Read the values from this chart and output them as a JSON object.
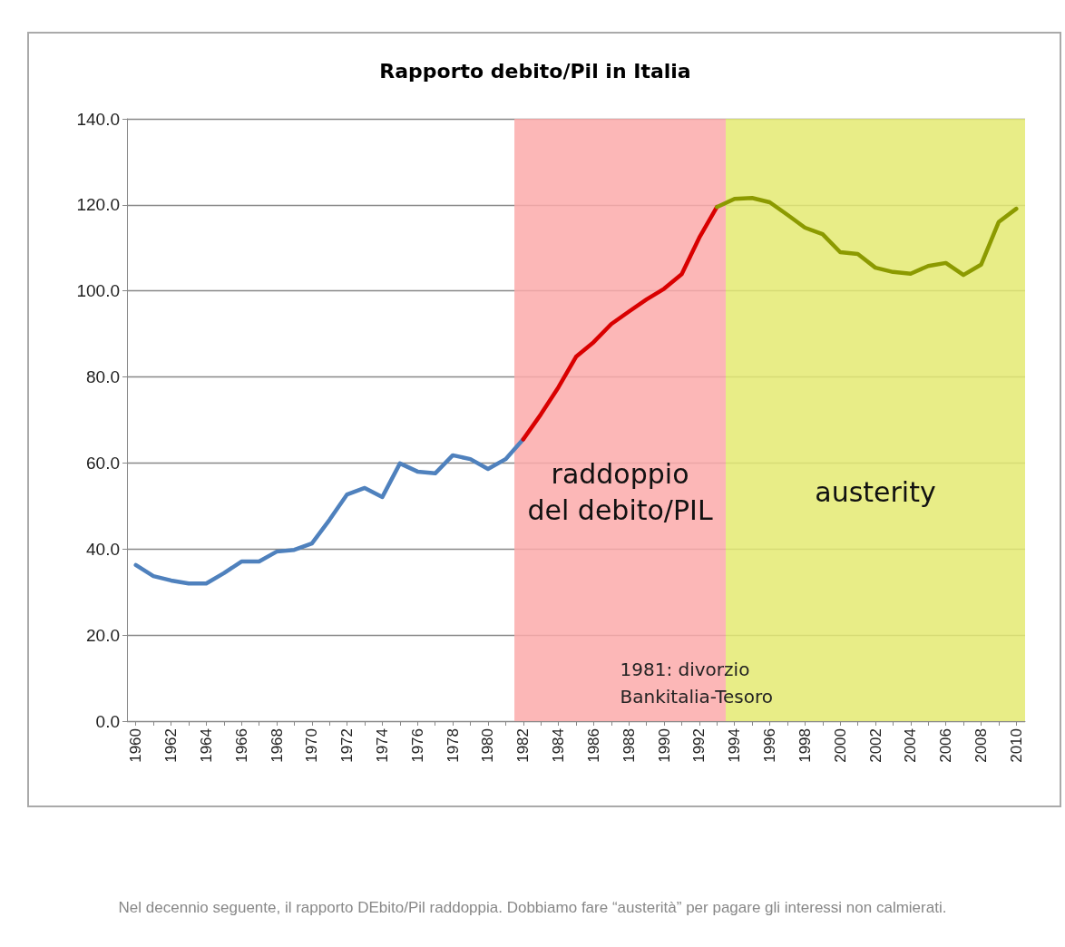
{
  "chart_data": {
    "type": "line",
    "title": "Rapporto debito/Pil in Italia",
    "x": [
      1960,
      1961,
      1962,
      1963,
      1964,
      1965,
      1966,
      1967,
      1968,
      1969,
      1970,
      1971,
      1972,
      1973,
      1974,
      1975,
      1976,
      1977,
      1978,
      1979,
      1980,
      1981,
      1982,
      1983,
      1984,
      1985,
      1986,
      1987,
      1988,
      1989,
      1990,
      1991,
      1992,
      1993,
      1994,
      1995,
      1996,
      1997,
      1998,
      1999,
      2000,
      2001,
      2002,
      2003,
      2004,
      2005,
      2006,
      2007,
      2008,
      2009,
      2010
    ],
    "series": [
      {
        "color": "#4f81bd",
        "values": [
          36.3,
          33.7,
          32.7,
          32,
          32,
          34.4,
          37.1,
          37.1,
          39.4,
          39.8,
          41.3,
          46.8,
          52.7,
          54.2,
          52.1,
          59.9,
          58,
          57.6,
          61.8,
          60.9,
          58.6,
          60.9,
          65.5,
          null,
          null,
          null,
          null,
          null,
          null,
          null,
          null,
          null,
          null,
          null,
          null,
          null,
          null,
          null,
          null,
          null,
          null,
          null,
          null,
          null,
          null,
          null,
          null,
          null,
          null,
          null,
          null
        ]
      },
      {
        "color": "#d90000",
        "values": [
          null,
          null,
          null,
          null,
          null,
          null,
          null,
          null,
          null,
          null,
          null,
          null,
          null,
          null,
          null,
          null,
          null,
          null,
          null,
          null,
          null,
          null,
          65.5,
          71.3,
          77.6,
          84.7,
          88.1,
          92.3,
          95.2,
          98,
          100.5,
          103.9,
          112.4,
          119.5,
          null,
          null,
          null,
          null,
          null,
          null,
          null,
          null,
          null,
          null,
          null,
          null,
          null,
          null,
          null,
          null,
          null
        ]
      },
      {
        "color": "#8c9a00",
        "values": [
          null,
          null,
          null,
          null,
          null,
          null,
          null,
          null,
          null,
          null,
          null,
          null,
          null,
          null,
          null,
          null,
          null,
          null,
          null,
          null,
          null,
          null,
          null,
          null,
          null,
          null,
          null,
          null,
          null,
          null,
          null,
          null,
          null,
          119.5,
          121.4,
          121.6,
          120.6,
          117.7,
          114.7,
          113.2,
          109,
          108.6,
          105.4,
          104.4,
          104,
          105.8,
          106.5,
          103.7,
          106.1,
          116,
          119.1
        ]
      }
    ],
    "xlim": [
      1959.5,
      2010.5
    ],
    "xticks": [
      1960,
      {
        "value": 1961,
        "label": null
      },
      1962,
      {
        "value": 1963,
        "label": null
      },
      1964,
      {
        "value": 1965,
        "label": null
      },
      1966,
      {
        "value": 1967,
        "label": null
      },
      1968,
      {
        "value": 1969,
        "label": null
      },
      1970,
      {
        "value": 1971,
        "label": null
      },
      1972,
      {
        "value": 1973,
        "label": null
      },
      1974,
      {
        "value": 1975,
        "label": null
      },
      1976,
      {
        "value": 1977,
        "label": null
      },
      1978,
      {
        "value": 1979,
        "label": null
      },
      1980,
      {
        "value": 1981,
        "label": null
      },
      1982,
      {
        "value": 1983,
        "label": null
      },
      1984,
      {
        "value": 1985,
        "label": null
      },
      1986,
      {
        "value": 1987,
        "label": null
      },
      1988,
      {
        "value": 1989,
        "label": null
      },
      1990,
      {
        "value": 1991,
        "label": null
      },
      1992,
      {
        "value": 1993,
        "label": null
      },
      1994,
      {
        "value": 1995,
        "label": null
      },
      1996,
      {
        "value": 1997,
        "label": null
      },
      1998,
      {
        "value": 1999,
        "label": null
      },
      2000,
      {
        "value": 2001,
        "label": null
      },
      2002,
      {
        "value": 2003,
        "label": null
      },
      2004,
      {
        "value": 2005,
        "label": null
      },
      2006,
      {
        "value": 2007,
        "label": null
      },
      2008,
      {
        "value": 2009,
        "label": null
      },
      2010
    ],
    "ylim": [
      0,
      140
    ],
    "yticks": [
      {
        "value": 0,
        "label": "0.0"
      },
      {
        "value": 20,
        "label": "20.0"
      },
      {
        "value": 40,
        "label": "40.0"
      },
      {
        "value": 60,
        "label": "60.0"
      },
      {
        "value": 80,
        "label": "80.0"
      },
      {
        "value": 100,
        "label": "100.0"
      },
      {
        "value": 120,
        "label": "120.0"
      },
      {
        "value": 140,
        "label": "140.0"
      }
    ],
    "grid": "y",
    "marker": "none",
    "line_style": "solid",
    "bands": [
      {
        "axis": "x",
        "from": 1981.5,
        "to": 1993.5,
        "label": "raddoppio\ndel debito/PIL",
        "color": "#fbaaaa"
      },
      {
        "axis": "x",
        "from": 1993.5,
        "to": 2010.5,
        "label": "austerity",
        "color": "#e4ea72"
      }
    ],
    "annotations": [
      "1981: divorzio\nBankitalia-Tesoro",
      "Nel decennio seguente, il rapporto DEbito/Pil raddoppia. Dobbiamo fare “austerità” per pagare gli interessi  non calmierati."
    ]
  }
}
